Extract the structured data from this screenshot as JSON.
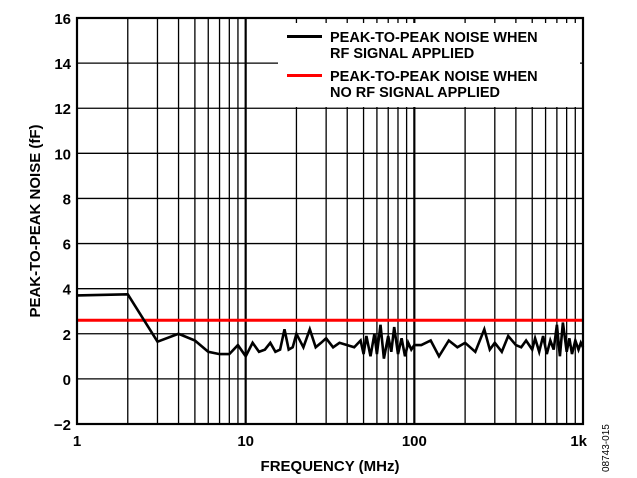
{
  "chart_data": {
    "type": "line",
    "title": "",
    "xlabel": "FREQUENCY (MHz)",
    "ylabel": "PEAK-TO-PEAK NOISE (fF)",
    "xscale": "log",
    "xlim": [
      1,
      1000
    ],
    "ylim": [
      -2,
      16
    ],
    "grid": true,
    "legend_position": "upper right",
    "x_ticks": [
      1,
      10,
      100,
      1000
    ],
    "x_tick_labels": [
      "1",
      "10",
      "100",
      "1k"
    ],
    "y_ticks": [
      -2,
      0,
      2,
      4,
      6,
      8,
      10,
      12,
      14,
      16
    ],
    "y_tick_labels": [
      "−2",
      "0",
      "2",
      "4",
      "6",
      "8",
      "10",
      "12",
      "14",
      "16"
    ],
    "series": [
      {
        "name": "PEAK-TO-PEAK NOISE WHEN RF SIGNAL APPLIED",
        "color": "#000000",
        "x": [
          1,
          2,
          3,
          4,
          5,
          6,
          7,
          8,
          9,
          10,
          11,
          12,
          13,
          14,
          15,
          16,
          17,
          18,
          19,
          20,
          22,
          24,
          26,
          28,
          30,
          33,
          36,
          40,
          44,
          48,
          50,
          52,
          55,
          58,
          60,
          63,
          66,
          70,
          73,
          76,
          80,
          84,
          88,
          92,
          96,
          100,
          110,
          125,
          140,
          160,
          180,
          200,
          230,
          260,
          280,
          300,
          330,
          360,
          400,
          430,
          460,
          500,
          520,
          550,
          580,
          610,
          640,
          670,
          700,
          730,
          760,
          800,
          830,
          860,
          900,
          940,
          970,
          1000
        ],
        "values": [
          3.7,
          3.75,
          1.65,
          2.0,
          1.7,
          1.2,
          1.1,
          1.1,
          1.5,
          1.0,
          1.6,
          1.2,
          1.3,
          1.6,
          1.2,
          1.3,
          2.2,
          1.3,
          1.4,
          2.0,
          1.4,
          2.2,
          1.4,
          1.6,
          1.8,
          1.4,
          1.6,
          1.5,
          1.4,
          1.7,
          1.1,
          1.9,
          1.0,
          2.0,
          1.1,
          2.4,
          0.9,
          1.9,
          1.2,
          2.3,
          1.1,
          1.8,
          1.0,
          1.6,
          1.3,
          1.5,
          1.5,
          1.7,
          1.0,
          1.7,
          1.4,
          1.6,
          1.2,
          2.2,
          1.3,
          1.6,
          1.2,
          1.9,
          1.5,
          1.4,
          1.7,
          1.3,
          1.8,
          1.2,
          1.9,
          1.1,
          1.7,
          1.3,
          2.4,
          1.0,
          2.5,
          1.2,
          1.8,
          1.1,
          1.7,
          1.3,
          1.6,
          1.4
        ]
      },
      {
        "name": "PEAK-TO-PEAK NOISE WHEN NO RF SIGNAL APPLIED",
        "color": "#ff0000",
        "x": [
          1,
          1000
        ],
        "values": [
          2.6,
          2.6
        ]
      }
    ],
    "annotations": [
      "08743-015"
    ]
  },
  "labels": {
    "xlabel": "FREQUENCY (MHz)",
    "ylabel": "PEAK-TO-PEAK NOISE (fF)",
    "legend": [
      {
        "line1": "PEAK-TO-PEAK NOISE WHEN",
        "line2": "RF SIGNAL APPLIED",
        "color": "#000000"
      },
      {
        "line1": "PEAK-TO-PEAK NOISE WHEN",
        "line2": "NO RF SIGNAL APPLIED",
        "color": "#ff0000"
      }
    ],
    "figure_id": "08743-015"
  }
}
